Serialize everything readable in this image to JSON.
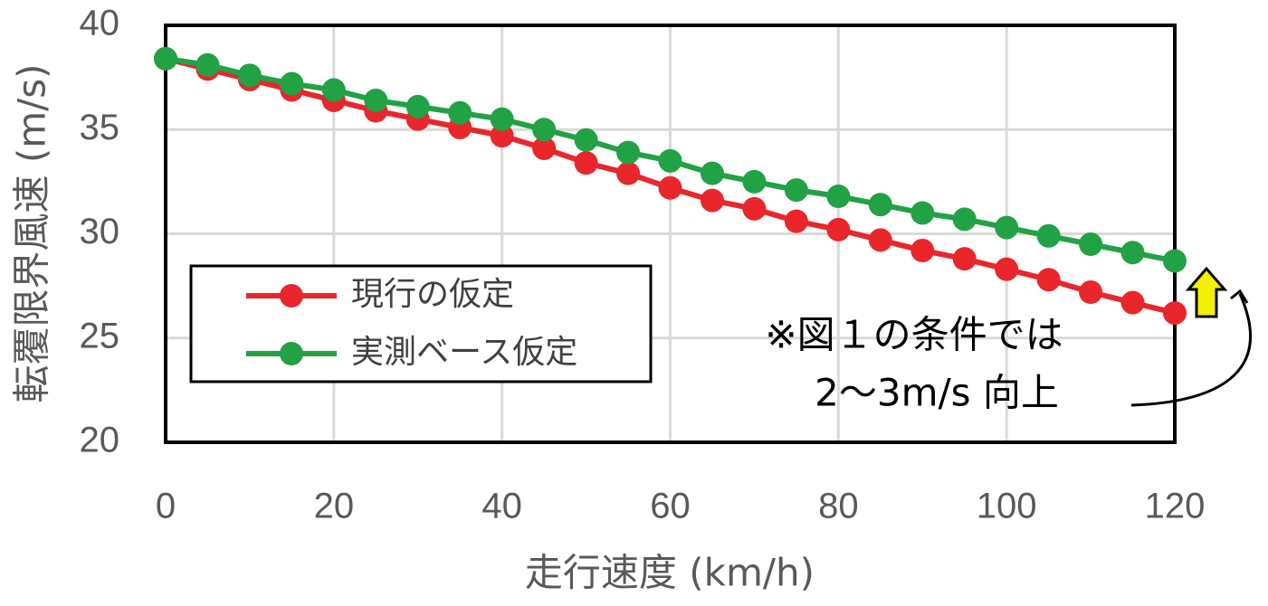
{
  "chart_data": {
    "type": "line",
    "x_label": "走行速度 (km/h)",
    "y_label": "転覆限界風速 (m/s)",
    "x": [
      0,
      5,
      10,
      15,
      20,
      25,
      30,
      35,
      40,
      45,
      50,
      55,
      60,
      65,
      70,
      75,
      80,
      85,
      90,
      95,
      100,
      105,
      110,
      115,
      120
    ],
    "series": [
      {
        "name": "現行の仮定",
        "color": "#e8262b",
        "values": [
          38.4,
          37.9,
          37.4,
          36.9,
          36.4,
          35.9,
          35.5,
          35.1,
          34.7,
          34.1,
          33.4,
          32.9,
          32.2,
          31.6,
          31.2,
          30.6,
          30.2,
          29.7,
          29.2,
          28.8,
          28.3,
          27.8,
          27.2,
          26.7,
          26.2
        ]
      },
      {
        "name": "実測ベース仮定",
        "color": "#21a244",
        "values": [
          38.4,
          38.1,
          37.6,
          37.2,
          36.9,
          36.4,
          36.1,
          35.8,
          35.5,
          35.0,
          34.5,
          33.9,
          33.5,
          32.9,
          32.5,
          32.1,
          31.8,
          31.4,
          31.0,
          30.7,
          30.3,
          29.9,
          29.5,
          29.1,
          28.7
        ]
      }
    ],
    "xlim": [
      0,
      120
    ],
    "xticks": [
      0,
      20,
      40,
      60,
      80,
      100,
      120
    ],
    "ylim": [
      20,
      40
    ],
    "yticks": [
      20,
      25,
      30,
      35,
      40
    ],
    "grid": true,
    "annotations": [
      "※図１の条件では",
      "2～3m/s 向上"
    ]
  }
}
